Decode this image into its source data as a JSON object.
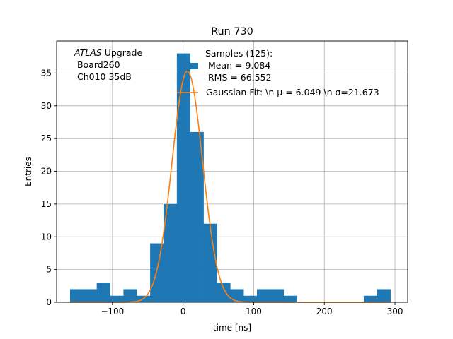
{
  "chart_data": {
    "type": "bar",
    "title": "Run 730",
    "xlabel": "time [ns]",
    "ylabel": "Entries",
    "xlim": [
      -179,
      318
    ],
    "ylim": [
      0,
      39.9
    ],
    "xticks": [
      -100,
      0,
      100,
      200,
      300
    ],
    "xtick_labels": [
      "−100",
      "0",
      "100",
      "200",
      "300"
    ],
    "yticks": [
      0,
      5,
      10,
      15,
      20,
      25,
      30,
      35
    ],
    "ytick_labels": [
      "0",
      "5",
      "10",
      "15",
      "20",
      "25",
      "30",
      "35"
    ],
    "grid": true,
    "bin_width": 18.9,
    "bin_start": -160,
    "histogram_counts": [
      2,
      2,
      3,
      1,
      2,
      1,
      9,
      15,
      38,
      26,
      12,
      3,
      2,
      1,
      2,
      2,
      1,
      0,
      0,
      0,
      0,
      0,
      1,
      2
    ],
    "gaussian_fit": {
      "mu": 6.049,
      "sigma": 21.673,
      "amplitude": 35.3
    },
    "text_box_left": {
      "line1_italic": "ATLAS",
      "line1_rest": " Upgrade",
      "line2": " Board260",
      "line3": " Ch010 35dB"
    },
    "legend": {
      "samples_line1": "Samples (125):",
      "samples_line2": " Mean = 9.084",
      "samples_line3": " RMS = 66.552",
      "fit_label": "Gaussian Fit: \\n μ = 6.049 \\n σ=21.673",
      "placement": "top-right"
    },
    "colors": {
      "bars": "#1f77b4",
      "fit": "#ff7f0e",
      "grid": "#b0b0b0"
    }
  }
}
